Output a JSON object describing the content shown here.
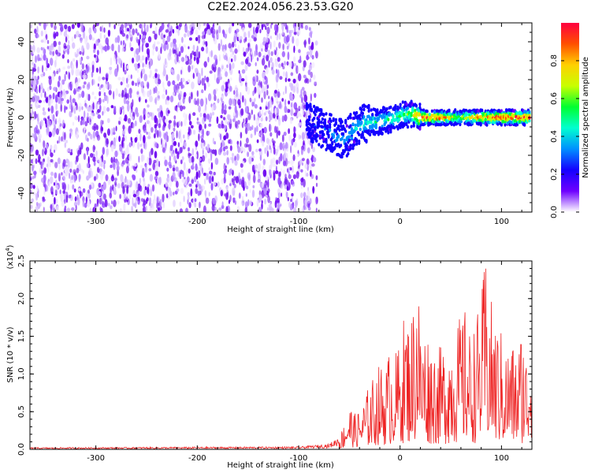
{
  "title": "C2E2.2024.056.23.53.G20",
  "colors": {
    "snr_line": "#ee2222",
    "spec_noise": "#7a22ee",
    "colormap": [
      "#ffffff",
      "#6e00ff",
      "#1400ff",
      "#0090ff",
      "#00ffd0",
      "#00ff30",
      "#c8ff00",
      "#ffd000",
      "#ff5000",
      "#ff0040"
    ]
  },
  "chart_data": [
    {
      "type": "heatmap",
      "xlabel": "Height of straight line (km)",
      "ylabel": "Frequency (Hz)",
      "xlim": [
        -365,
        130
      ],
      "ylim": [
        -50,
        50
      ],
      "xticks": [
        -300,
        -200,
        -100,
        0,
        100
      ],
      "yticks": [
        -40,
        -20,
        0,
        20,
        40
      ],
      "xtick_labels": [
        "-300",
        "-200",
        "-100",
        "0",
        "100"
      ],
      "ytick_labels": [
        "-40",
        "-20",
        "0",
        "20",
        "40"
      ],
      "noise_region_x": [
        -365,
        -82
      ],
      "signal_x": [
        -92,
        -70,
        -55,
        -45,
        -35,
        -20,
        -10,
        0,
        10,
        20,
        40,
        60,
        80,
        100,
        128
      ],
      "signal_center_hz": [
        -2,
        -8,
        -12,
        -6,
        -3,
        -2,
        -1,
        1,
        2,
        0,
        0,
        0,
        0,
        0,
        0
      ],
      "signal_amplitude": [
        0.2,
        0.25,
        0.3,
        0.35,
        0.4,
        0.45,
        0.45,
        0.5,
        0.55,
        0.95,
        0.95,
        0.6,
        0.95,
        0.95,
        0.95
      ],
      "colorbar": {
        "label": "Normalized spectral amplitude",
        "range": [
          0,
          1
        ],
        "ticks": [
          0.0,
          0.2,
          0.4,
          0.6,
          0.8
        ],
        "tick_labels": [
          "0.0",
          "0.2",
          "0.4",
          "0.6",
          "0.8"
        ]
      }
    },
    {
      "type": "line",
      "xlabel": "Height of straight line (km)",
      "ylabel": "SNR (10 * v/v)",
      "y_scale_label": "(x10",
      "y_scale_exponent": "4",
      "y_scale_close": ")",
      "xlim": [
        -365,
        130
      ],
      "ylim": [
        0,
        25000
      ],
      "xticks": [
        -300,
        -200,
        -100,
        0,
        100
      ],
      "yticks": [
        0,
        5000,
        10000,
        15000,
        20000,
        25000
      ],
      "xtick_labels": [
        "-300",
        "-200",
        "-100",
        "0",
        "100"
      ],
      "ytick_labels": [
        "0.0",
        "0.5",
        "1.0",
        "1.5",
        "2.0",
        "2.5"
      ],
      "series": [
        {
          "x": [
            -365,
            -100,
            -70,
            -60,
            -55,
            -50,
            -45,
            -40,
            -35,
            -30,
            -25,
            -20,
            -15,
            -10,
            -5,
            0,
            5,
            10,
            15,
            18,
            20,
            25,
            30,
            40,
            50,
            55,
            60,
            65,
            70,
            75,
            80,
            84,
            88,
            95,
            100,
            105,
            110,
            115,
            120,
            125,
            130
          ],
          "y": [
            200,
            300,
            600,
            1500,
            3500,
            6000,
            4500,
            5000,
            6500,
            8500,
            9500,
            11000,
            10500,
            13000,
            12000,
            14000,
            18000,
            16000,
            21000,
            25000,
            15000,
            16000,
            14000,
            13000,
            15000,
            16000,
            17000,
            18000,
            14000,
            17000,
            19000,
            25000,
            20000,
            16000,
            15000,
            13000,
            14000,
            12000,
            16000,
            12000,
            18000
          ]
        }
      ]
    }
  ]
}
